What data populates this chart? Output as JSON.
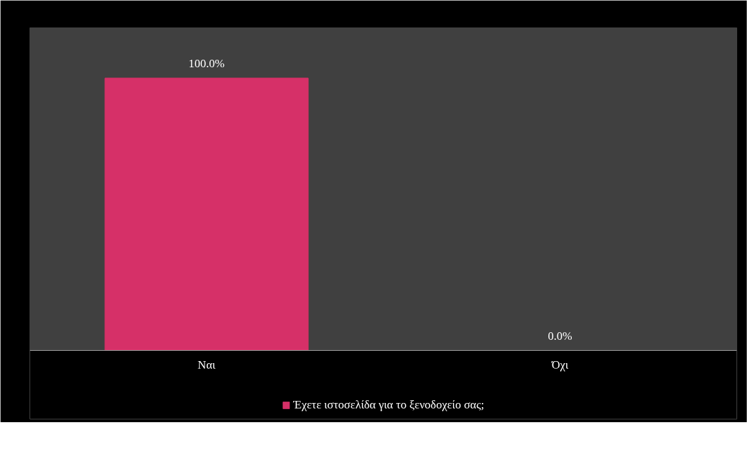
{
  "chart_data": {
    "type": "bar",
    "categories": [
      "Ναι",
      "Όχι"
    ],
    "series": [
      {
        "name": "Έχετε ιστοσελίδα για το ξενοδοχείο σας;",
        "color": "#d63068",
        "values": [
          100,
          0
        ],
        "value_labels": [
          "100.0%",
          "0.0%"
        ]
      }
    ],
    "grid": false,
    "legend": "bottom",
    "tick_labels": "x"
  }
}
